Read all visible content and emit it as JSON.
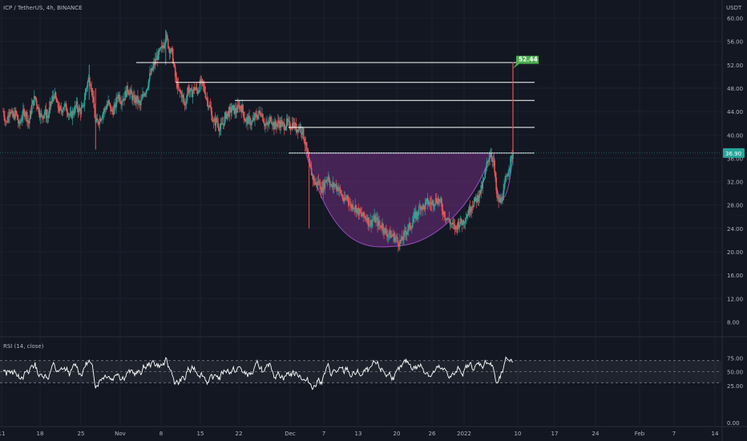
{
  "header": {
    "symbol_line": "ICP / TetherUS, 4h, BINANCE",
    "unit_label": "USDT"
  },
  "indicator": {
    "label": "RSI (14, close)"
  },
  "colors": {
    "background": "#131722",
    "up": "#26a69a",
    "down": "#ef5350",
    "resistance_line": "#ffffff",
    "cup_fill": "#5b2a6b",
    "cup_stroke": "#9c4dc0",
    "target_badge": "#4caf50",
    "rsi_line": "#ffffff",
    "rsi_band": "#787b86"
  },
  "chart_data": [
    {
      "type": "candlestick",
      "title": "ICP / TetherUS, 4h, BINANCE",
      "y_axis": {
        "ticks": [
          "60.00",
          "56.00",
          "52.00",
          "48.00",
          "44.00",
          "40.00",
          "36.00",
          "32.00",
          "28.00",
          "24.00",
          "20.00",
          "16.00",
          "12.00",
          "8.00"
        ],
        "ylim": [
          6,
          62
        ]
      },
      "x_axis": {
        "ticks": [
          "11",
          "18",
          "25",
          "Nov",
          "8",
          "15",
          "22",
          "Dec",
          "7",
          "13",
          "20",
          "26",
          "2022",
          "10",
          "17",
          "24",
          "Feb",
          "7",
          "14"
        ]
      },
      "last_price": {
        "value": 36.9,
        "label": "36.90"
      },
      "target": {
        "value": 52.44,
        "label": "52.44"
      },
      "resistance_levels": [
        {
          "price": 52.4,
          "from": "Nov",
          "to": "10"
        },
        {
          "price": 49.0,
          "from": "8",
          "to": "10"
        },
        {
          "price": 45.9,
          "from": "22",
          "to": "10"
        },
        {
          "price": 41.3,
          "from": "Dec",
          "to": "10"
        },
        {
          "price": 36.9,
          "from": "Dec",
          "to": "10"
        }
      ],
      "cup": {
        "rim_left": 36.9,
        "rim_right": 36.9,
        "bottom": 21.0,
        "bottom_at": "20",
        "handle_low": 27.2
      },
      "price_path": [
        [
          0,
          44
        ],
        [
          4,
          42
        ],
        [
          8,
          44.5
        ],
        [
          12,
          43
        ],
        [
          16,
          43.8
        ],
        [
          20,
          41.5
        ],
        [
          24,
          43.5
        ],
        [
          28,
          44
        ],
        [
          32,
          42
        ],
        [
          36,
          45
        ],
        [
          40,
          46.5
        ],
        [
          44,
          44.5
        ],
        [
          48,
          43
        ],
        [
          52,
          44
        ],
        [
          56,
          43
        ],
        [
          60,
          45.5
        ],
        [
          64,
          47
        ],
        [
          68,
          45
        ],
        [
          72,
          44
        ],
        [
          76,
          45
        ],
        [
          80,
          44.5
        ],
        [
          84,
          43
        ],
        [
          88,
          44
        ],
        [
          92,
          45
        ],
        [
          96,
          44
        ],
        [
          100,
          44.5
        ],
        [
          104,
          48
        ],
        [
          108,
          50
        ],
        [
          112,
          47
        ],
        [
          116,
          42
        ],
        [
          120,
          42.5
        ],
        [
          124,
          43.5
        ],
        [
          128,
          44.5
        ],
        [
          132,
          45.5
        ],
        [
          136,
          44
        ],
        [
          140,
          44.5
        ],
        [
          144,
          47
        ],
        [
          148,
          46
        ],
        [
          152,
          46.5
        ],
        [
          156,
          48
        ],
        [
          160,
          47
        ],
        [
          164,
          46
        ],
        [
          168,
          46
        ],
        [
          172,
          45
        ],
        [
          176,
          47
        ],
        [
          180,
          48
        ],
        [
          184,
          50
        ],
        [
          188,
          51.5
        ],
        [
          192,
          53
        ],
        [
          196,
          54
        ],
        [
          200,
          55
        ],
        [
          204,
          57
        ],
        [
          208,
          55
        ],
        [
          212,
          54
        ],
        [
          216,
          50
        ],
        [
          220,
          47.5
        ],
        [
          224,
          47
        ],
        [
          228,
          45
        ],
        [
          232,
          48
        ],
        [
          236,
          47
        ],
        [
          240,
          48
        ],
        [
          244,
          47.5
        ],
        [
          248,
          49
        ],
        [
          252,
          48
        ],
        [
          256,
          46
        ],
        [
          260,
          44.5
        ],
        [
          264,
          42
        ],
        [
          268,
          42.5
        ],
        [
          272,
          41
        ],
        [
          276,
          42
        ],
        [
          280,
          43.5
        ],
        [
          284,
          44
        ],
        [
          288,
          44.5
        ],
        [
          292,
          44
        ],
        [
          296,
          45
        ],
        [
          300,
          44.5
        ],
        [
          304,
          42.5
        ],
        [
          308,
          42.5
        ],
        [
          312,
          42
        ],
        [
          316,
          43
        ],
        [
          320,
          43.5
        ],
        [
          324,
          44
        ],
        [
          328,
          42
        ],
        [
          332,
          41.5
        ],
        [
          336,
          43
        ],
        [
          340,
          41.5
        ],
        [
          344,
          42
        ],
        [
          348,
          42
        ],
        [
          352,
          41.5
        ],
        [
          356,
          42
        ],
        [
          360,
          41.5
        ],
        [
          364,
          42
        ],
        [
          368,
          41
        ],
        [
          372,
          41.5
        ],
        [
          376,
          40.5
        ],
        [
          380,
          38
        ],
        [
          384,
          35
        ],
        [
          388,
          33
        ],
        [
          392,
          31.5
        ],
        [
          396,
          32
        ],
        [
          400,
          30.5
        ],
        [
          404,
          32
        ],
        [
          408,
          33
        ],
        [
          412,
          31
        ],
        [
          416,
          31.5
        ],
        [
          420,
          31
        ],
        [
          424,
          30
        ],
        [
          428,
          28.5
        ],
        [
          432,
          29.5
        ],
        [
          436,
          27.8
        ],
        [
          440,
          28
        ],
        [
          444,
          27.2
        ],
        [
          448,
          26.5
        ],
        [
          452,
          26
        ],
        [
          456,
          26
        ],
        [
          460,
          24.8
        ],
        [
          464,
          25.5
        ],
        [
          468,
          25.5
        ],
        [
          472,
          24.5
        ],
        [
          476,
          24.5
        ],
        [
          480,
          23.3
        ],
        [
          484,
          23
        ],
        [
          488,
          22.8
        ],
        [
          492,
          22.5
        ],
        [
          496,
          21.6
        ],
        [
          500,
          21.8
        ],
        [
          504,
          23
        ],
        [
          508,
          24
        ],
        [
          512,
          24.5
        ],
        [
          516,
          26
        ],
        [
          520,
          26.5
        ],
        [
          524,
          28
        ],
        [
          528,
          27.5
        ],
        [
          532,
          28.5
        ],
        [
          536,
          28.2
        ],
        [
          540,
          28.5
        ],
        [
          544,
          29
        ],
        [
          548,
          28.7
        ],
        [
          552,
          27
        ],
        [
          556,
          26
        ],
        [
          560,
          25.2
        ],
        [
          564,
          24.5
        ],
        [
          568,
          24
        ],
        [
          572,
          25
        ],
        [
          576,
          25
        ],
        [
          580,
          25.8
        ],
        [
          584,
          26.8
        ],
        [
          588,
          28
        ],
        [
          592,
          28.6
        ],
        [
          596,
          29.4
        ],
        [
          600,
          30.6
        ],
        [
          604,
          32.5
        ],
        [
          608,
          35.5
        ],
        [
          612,
          37
        ],
        [
          616,
          35
        ],
        [
          620,
          29
        ],
        [
          624,
          28.5
        ],
        [
          628,
          30
        ],
        [
          632,
          33
        ],
        [
          636,
          35
        ],
        [
          640,
          36.9
        ]
      ],
      "rsi": {
        "levels": [
          70,
          50,
          30
        ],
        "y_ticks": [
          "75.00",
          "50.00",
          "25.00",
          "0.00"
        ],
        "ylim": [
          0,
          100
        ]
      }
    }
  ]
}
